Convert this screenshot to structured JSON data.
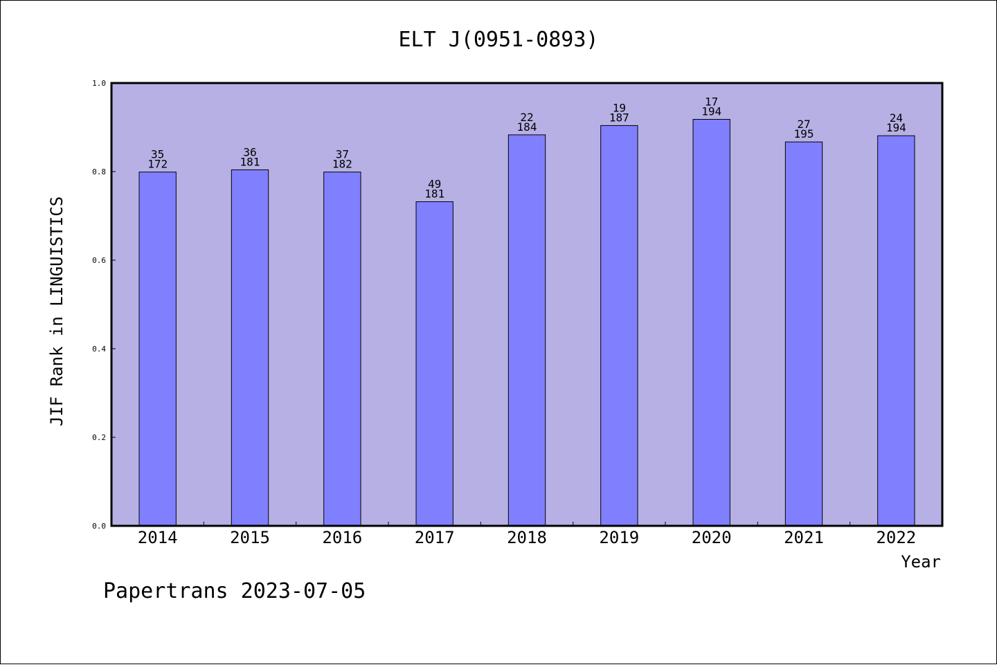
{
  "chart_data": {
    "type": "bar",
    "title": "ELT J(0951-0893)",
    "xlabel": "Year",
    "ylabel": "JIF Rank in LINGUISTICS",
    "ylim": [
      0,
      1.0
    ],
    "yticks": [
      "0.0",
      "0.2",
      "0.4",
      "0.6",
      "0.8",
      "1.0"
    ],
    "categories": [
      "2014",
      "2015",
      "2016",
      "2017",
      "2018",
      "2019",
      "2020",
      "2021",
      "2022"
    ],
    "values": [
      0.799,
      0.804,
      0.799,
      0.732,
      0.883,
      0.904,
      0.918,
      0.867,
      0.881
    ],
    "rank": [
      "35",
      "36",
      "37",
      "49",
      "22",
      "19",
      "17",
      "27",
      "24"
    ],
    "total": [
      "172",
      "181",
      "182",
      "181",
      "184",
      "187",
      "194",
      "195",
      "194"
    ],
    "colors": {
      "plot_background": "#b6b0e4",
      "bar": "#8080ff"
    },
    "grid": false,
    "legend": "none"
  },
  "footer": {
    "text": "Papertrans 2023-07-05"
  }
}
